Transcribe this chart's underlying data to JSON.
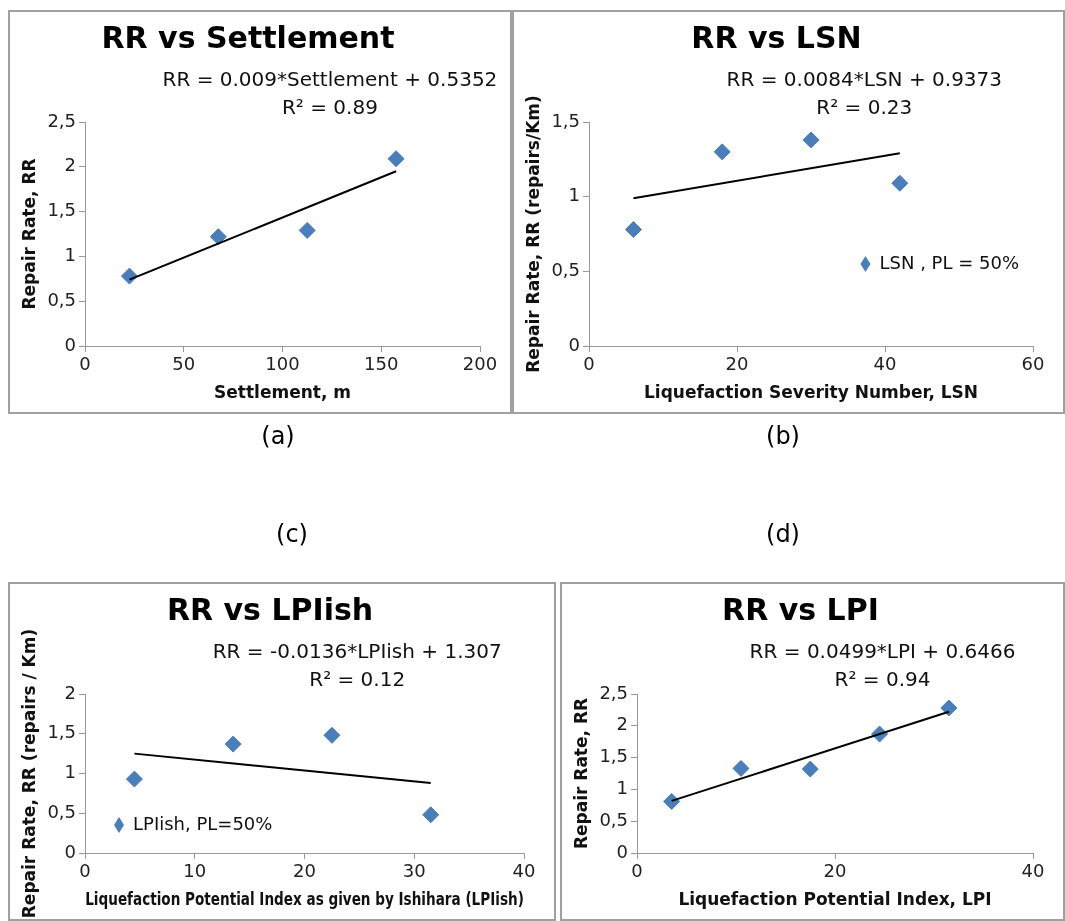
{
  "chart_data": [
    {
      "type": "scatter",
      "title": "RR vs Settlement",
      "xlabel": "Settlement, m",
      "ylabel": "Repair Rate, RR",
      "annotations": [
        "RR = 0.009*Settlement + 0.5352",
        "R² = 0.89",
        "(a)"
      ],
      "xlim": [
        0,
        200
      ],
      "xticks": [
        0,
        50,
        100,
        150,
        200
      ],
      "ylim": [
        0,
        2.5
      ],
      "yticks": [
        0,
        {
          "value": 0.5,
          "label": "0,5"
        },
        1,
        {
          "value": 1.5,
          "label": "1,5"
        },
        2,
        {
          "value": 2.5,
          "label": "2,5"
        }
      ],
      "grid": false,
      "legend": false,
      "series": [
        {
          "color": "#4a7ebb",
          "marker": "diamond",
          "x": [
            22.5,
            67.5,
            112.5,
            157.5
          ],
          "values": [
            0.78,
            1.22,
            1.29,
            2.09
          ]
        },
        {
          "type": "line",
          "marker": "none",
          "color": "#000000",
          "x": [
            22.5,
            157.5
          ],
          "values": [
            0.74,
            1.95
          ]
        }
      ]
    },
    {
      "type": "scatter",
      "title": "RR vs LSN",
      "xlabel": "Liquefaction Severity Number, LSN",
      "ylabel": "Repair Rate, RR (repairs/Km)",
      "annotations": [
        "RR = 0.0084*LSN + 0.9373",
        "R² = 0.23",
        "(b)"
      ],
      "xlim": [
        0,
        60
      ],
      "xticks": [
        0,
        20,
        40,
        60
      ],
      "ylim": [
        0,
        1.5
      ],
      "yticks": [
        0,
        {
          "value": 0.5,
          "label": "0,5"
        },
        1,
        {
          "value": 1.5,
          "label": "1,5"
        }
      ],
      "grid": false,
      "legend": "right",
      "series": [
        {
          "name": "LSN , PL = 50%",
          "marker": "diamond",
          "color": "#4a7ebb",
          "x": [
            6,
            18,
            30,
            42
          ],
          "values": [
            0.78,
            1.3,
            1.38,
            1.09
          ]
        },
        {
          "type": "line",
          "marker": "none",
          "color": "#000000",
          "x": [
            6,
            42
          ],
          "values": [
            0.99,
            1.29
          ]
        }
      ]
    },
    {
      "type": "scatter",
      "title": "RR vs LPIish",
      "xlabel": "Liquefaction Potential Index as given by Ishihara (LPIish)",
      "ylabel": "Repair Rate, RR (repairs / Km)",
      "annotations": [
        "RR = -0.0136*LPIish + 1.307",
        "R² = 0.12",
        "(c)"
      ],
      "xlim": [
        0,
        40
      ],
      "xticks": [
        0,
        10,
        20,
        30,
        40
      ],
      "ylim": [
        0,
        2
      ],
      "yticks": [
        0,
        {
          "value": 0.5,
          "label": "0,5"
        },
        1,
        {
          "value": 1.5,
          "label": "1,5"
        },
        2
      ],
      "grid": false,
      "legend": "bottom left",
      "series": [
        {
          "name": "LPIish, PL=50%",
          "marker": "diamond",
          "color": "#4a7ebb",
          "x": [
            4.5,
            13.5,
            22.5,
            31.5
          ],
          "values": [
            0.93,
            1.37,
            1.48,
            0.48
          ]
        },
        {
          "type": "line",
          "marker": "none",
          "color": "#000000",
          "x": [
            4.5,
            31.5
          ],
          "values": [
            1.25,
            0.88
          ]
        }
      ]
    },
    {
      "type": "scatter",
      "title": "RR vs LPI",
      "xlabel": "Liquefaction Potential Index, LPI",
      "ylabel": "Repair Rate, RR",
      "annotations": [
        "RR = 0.0499*LPI + 0.6466",
        "R² = 0.94",
        "(d)"
      ],
      "xlim": [
        0,
        40
      ],
      "xticks": [
        0,
        20,
        40
      ],
      "ylim": [
        0,
        2.5
      ],
      "yticks": [
        0,
        {
          "value": 0.5,
          "label": "0,5"
        },
        1,
        {
          "value": 1.5,
          "label": "1,5"
        },
        2,
        {
          "value": 2.5,
          "label": "2,5"
        }
      ],
      "grid": false,
      "legend": false,
      "series": [
        {
          "color": "#4a7ebb",
          "marker": "diamond",
          "x": [
            3.5,
            10.5,
            17.5,
            24.5,
            31.5
          ],
          "values": [
            0.81,
            1.33,
            1.32,
            1.87,
            2.28
          ]
        },
        {
          "type": "line",
          "marker": "none",
          "color": "#000000",
          "x": [
            3.5,
            31.5
          ],
          "values": [
            0.82,
            2.22
          ]
        }
      ]
    }
  ]
}
